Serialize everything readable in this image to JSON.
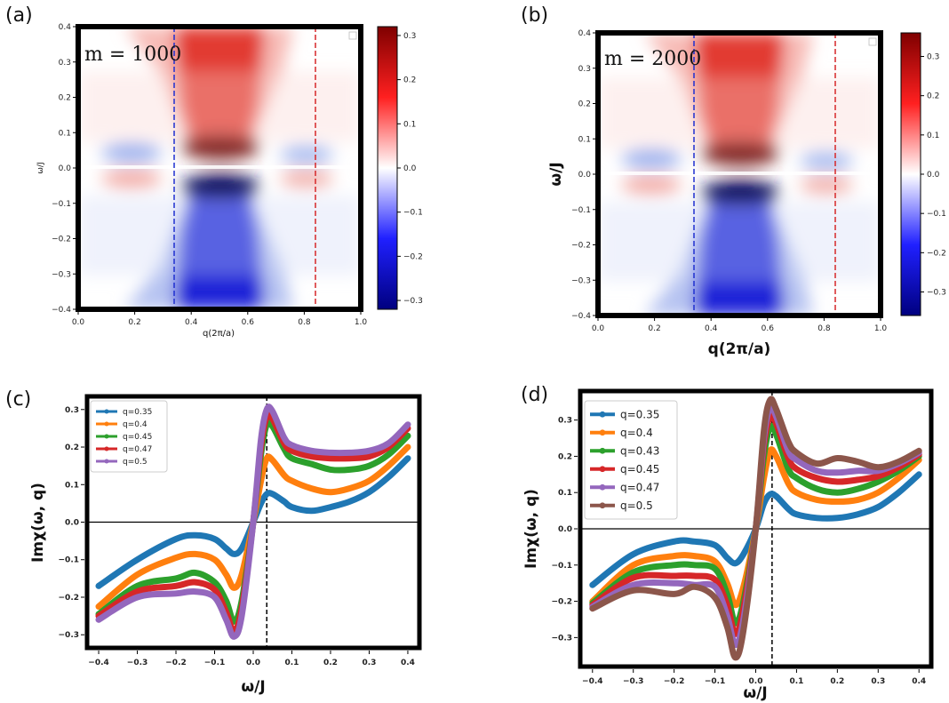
{
  "figure": {
    "panels": [
      "(a)",
      "(b)",
      "(c)",
      "(d)"
    ]
  },
  "colors": {
    "blue": "#1f77b4",
    "orange": "#ff7f0e",
    "green": "#2ca02c",
    "red": "#d62728",
    "purple": "#9467bd",
    "brown": "#8c564b",
    "cmap_neg": "#00007f",
    "cmap_pos": "#7f0000"
  },
  "chart_data": [
    {
      "id": "a",
      "type": "heatmap",
      "panel_label": "(a)",
      "annotation": "m = 1000",
      "xlabel": "q(2π/a)",
      "ylabel": "ω/J",
      "xlim": [
        0.0,
        1.0
      ],
      "ylim": [
        -0.4,
        0.4
      ],
      "x_ticks": [
        "0.0",
        "0.2",
        "0.4",
        "0.6",
        "0.8",
        "1.0"
      ],
      "y_ticks": [
        "−0.4",
        "−0.3",
        "−0.2",
        "−0.1",
        "0.0",
        "0.1",
        "0.2",
        "0.3",
        "0.4"
      ],
      "colorbar": {
        "min": -0.32,
        "max": 0.32,
        "ticks": [
          "0.3",
          "0.2",
          "0.1",
          "0.0",
          "−0.1",
          "−0.2",
          "−0.3"
        ],
        "cmap": "seismic"
      },
      "vlines": [
        {
          "x": 0.34,
          "color": "blue",
          "style": "dashed"
        },
        {
          "x": 0.84,
          "color": "red",
          "style": "dashed"
        }
      ],
      "features": [
        {
          "q_center": 0.5,
          "q_width": 0.13,
          "sign": "antisymmetric",
          "peak": 0.32
        },
        {
          "q_center": 0.2,
          "q_width": 0.08,
          "sign": "inverted",
          "peak": 0.1
        },
        {
          "q_center": 0.8,
          "q_width": 0.07,
          "sign": "inverted",
          "peak": 0.08
        }
      ]
    },
    {
      "id": "b",
      "type": "heatmap",
      "panel_label": "(b)",
      "annotation": "m = 2000",
      "xlabel": "q(2π/a)",
      "ylabel": "ω/J",
      "xlim": [
        0.0,
        1.0
      ],
      "ylim": [
        -0.4,
        0.4
      ],
      "x_ticks": [
        "0.0",
        "0.2",
        "0.4",
        "0.6",
        "0.8",
        "1.0"
      ],
      "y_ticks": [
        "−0.4",
        "−0.3",
        "−0.2",
        "−0.1",
        "0.0",
        "0.1",
        "0.2",
        "0.3",
        "0.4"
      ],
      "colorbar": {
        "min": -0.36,
        "max": 0.36,
        "ticks": [
          "0.3",
          "0.2",
          "0.1",
          "0.0",
          "−0.1",
          "−0.2",
          "−0.3"
        ],
        "cmap": "seismic"
      },
      "vlines": [
        {
          "x": 0.34,
          "color": "blue",
          "style": "dashed"
        },
        {
          "x": 0.84,
          "color": "red",
          "style": "dashed"
        }
      ],
      "features": [
        {
          "q_center": 0.5,
          "q_width": 0.13,
          "sign": "antisymmetric",
          "peak": 0.36
        },
        {
          "q_center": 0.2,
          "q_width": 0.08,
          "sign": "inverted",
          "peak": 0.1
        },
        {
          "q_center": 0.8,
          "q_width": 0.07,
          "sign": "inverted",
          "peak": 0.08
        }
      ]
    },
    {
      "id": "c",
      "type": "line",
      "panel_label": "(c)",
      "xlabel": "ω/J",
      "ylabel": "Imχ(ω, q)",
      "xlim": [
        -0.43,
        0.43
      ],
      "ylim": [
        -0.335,
        0.335
      ],
      "x_ticks": [
        -0.4,
        -0.3,
        -0.2,
        -0.1,
        0.0,
        0.1,
        0.2,
        0.3,
        0.4
      ],
      "y_ticks": [
        -0.3,
        -0.2,
        -0.1,
        0.0,
        0.1,
        0.2,
        0.3
      ],
      "hline": 0.0,
      "vline": {
        "x": 0.035,
        "style": "dashed"
      },
      "legend": "top-left",
      "x": [
        -0.4,
        -0.3,
        -0.2,
        -0.15,
        -0.1,
        -0.07,
        -0.05,
        -0.03,
        0.0,
        0.02,
        0.035,
        0.05,
        0.08,
        0.1,
        0.15,
        0.2,
        0.25,
        0.3,
        0.35,
        0.4
      ],
      "series": [
        {
          "name": "q=0.35",
          "color": "blue",
          "values": [
            -0.17,
            -0.1,
            -0.045,
            -0.035,
            -0.045,
            -0.07,
            -0.085,
            -0.07,
            0.0,
            0.05,
            0.075,
            0.075,
            0.055,
            0.04,
            0.03,
            0.04,
            0.055,
            0.08,
            0.12,
            0.17
          ]
        },
        {
          "name": "q=0.4",
          "color": "orange",
          "values": [
            -0.225,
            -0.14,
            -0.095,
            -0.085,
            -0.1,
            -0.14,
            -0.175,
            -0.14,
            0.0,
            0.11,
            0.17,
            0.165,
            0.125,
            0.11,
            0.09,
            0.08,
            0.09,
            0.11,
            0.15,
            0.2
          ]
        },
        {
          "name": "q=0.45",
          "color": "green",
          "values": [
            -0.245,
            -0.17,
            -0.15,
            -0.135,
            -0.16,
            -0.21,
            -0.265,
            -0.21,
            0.0,
            0.18,
            0.26,
            0.255,
            0.195,
            0.17,
            0.155,
            0.14,
            0.14,
            0.15,
            0.18,
            0.23
          ]
        },
        {
          "name": "q=0.47",
          "color": "red",
          "values": [
            -0.25,
            -0.185,
            -0.17,
            -0.16,
            -0.18,
            -0.24,
            -0.29,
            -0.23,
            0.0,
            0.2,
            0.28,
            0.275,
            0.21,
            0.19,
            0.175,
            0.17,
            0.17,
            0.175,
            0.2,
            0.25
          ]
        },
        {
          "name": "q=0.5",
          "color": "purple",
          "values": [
            -0.26,
            -0.2,
            -0.19,
            -0.185,
            -0.2,
            -0.26,
            -0.305,
            -0.25,
            0.0,
            0.22,
            0.3,
            0.295,
            0.225,
            0.205,
            0.19,
            0.185,
            0.185,
            0.19,
            0.21,
            0.26
          ]
        }
      ]
    },
    {
      "id": "d",
      "type": "line",
      "panel_label": "(d)",
      "xlabel": "ω/J",
      "ylabel": "Imχ(ω, q)",
      "xlim": [
        -0.43,
        0.43
      ],
      "ylim": [
        -0.38,
        0.38
      ],
      "x_ticks": [
        -0.4,
        -0.3,
        -0.2,
        -0.1,
        0.0,
        0.1,
        0.2,
        0.3,
        0.4
      ],
      "y_ticks": [
        -0.3,
        -0.2,
        -0.1,
        0.0,
        0.1,
        0.2,
        0.3
      ],
      "hline": 0.0,
      "vline": {
        "x": 0.04,
        "style": "dashed"
      },
      "legend": "top-left",
      "x": [
        -0.4,
        -0.3,
        -0.2,
        -0.15,
        -0.1,
        -0.07,
        -0.05,
        -0.03,
        0.0,
        0.02,
        0.035,
        0.05,
        0.08,
        0.1,
        0.15,
        0.2,
        0.25,
        0.3,
        0.35,
        0.4
      ],
      "series": [
        {
          "name": "q=0.35",
          "color": "blue",
          "values": [
            -0.155,
            -0.07,
            -0.035,
            -0.035,
            -0.045,
            -0.08,
            -0.095,
            -0.07,
            0.0,
            0.07,
            0.095,
            0.09,
            0.055,
            0.04,
            0.03,
            0.03,
            0.04,
            0.06,
            0.1,
            0.15
          ]
        },
        {
          "name": "q=0.4",
          "color": "orange",
          "values": [
            -0.2,
            -0.1,
            -0.075,
            -0.075,
            -0.09,
            -0.15,
            -0.21,
            -0.16,
            0.0,
            0.14,
            0.215,
            0.2,
            0.125,
            0.1,
            0.08,
            0.075,
            0.08,
            0.1,
            0.14,
            0.19
          ]
        },
        {
          "name": "q=0.43",
          "color": "green",
          "values": [
            -0.205,
            -0.12,
            -0.1,
            -0.1,
            -0.11,
            -0.18,
            -0.26,
            -0.2,
            0.0,
            0.2,
            0.28,
            0.26,
            0.165,
            0.14,
            0.11,
            0.1,
            0.11,
            0.13,
            0.16,
            0.2
          ]
        },
        {
          "name": "q=0.45",
          "color": "red",
          "values": [
            -0.21,
            -0.135,
            -0.13,
            -0.13,
            -0.14,
            -0.21,
            -0.29,
            -0.22,
            0.0,
            0.23,
            0.31,
            0.29,
            0.195,
            0.165,
            0.14,
            0.13,
            0.135,
            0.145,
            0.17,
            0.205
          ]
        },
        {
          "name": "q=0.47",
          "color": "purple",
          "values": [
            -0.215,
            -0.155,
            -0.15,
            -0.155,
            -0.16,
            -0.24,
            -0.32,
            -0.25,
            0.0,
            0.25,
            0.335,
            0.31,
            0.215,
            0.19,
            0.16,
            0.155,
            0.16,
            0.16,
            0.18,
            0.21
          ]
        },
        {
          "name": "q=0.5",
          "color": "brown",
          "values": [
            -0.22,
            -0.17,
            -0.18,
            -0.16,
            -0.19,
            -0.27,
            -0.355,
            -0.28,
            0.0,
            0.27,
            0.355,
            0.33,
            0.24,
            0.21,
            0.18,
            0.195,
            0.185,
            0.17,
            0.185,
            0.215
          ]
        }
      ]
    }
  ]
}
